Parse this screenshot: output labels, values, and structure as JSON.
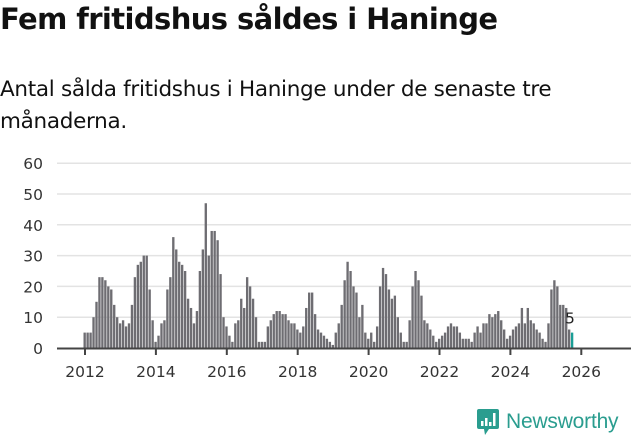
{
  "header": {
    "title": "Fem fritidshus såldes i Haninge",
    "subtitle": "Antal sålda fritidshus i Haninge under de senaste tre månaderna."
  },
  "branding": {
    "logo_text": "Newsworthy",
    "logo_icon": "bar-chart-speech-bubble-icon",
    "color": "#2a9d8f"
  },
  "colors": {
    "bar": "#6e6d72",
    "highlight": "#1a9e96",
    "gridline": "#e3e3e3",
    "axis": "#444444"
  },
  "chart_data": {
    "type": "bar",
    "title": "Fem fritidshus såldes i Haninge",
    "subtitle": "Antal sålda fritidshus i Haninge under de senaste tre månaderna.",
    "xlabel": "",
    "ylabel": "",
    "ylim": [
      0,
      60
    ],
    "yticks": [
      0,
      10,
      20,
      30,
      40,
      50,
      60
    ],
    "xticks": [
      "2012",
      "2014",
      "2016",
      "2018",
      "2020",
      "2022",
      "2024",
      "2026"
    ],
    "grid": true,
    "legend": null,
    "start": "2012-01",
    "frequency": "monthly",
    "annotation": {
      "label": "5",
      "index": "last"
    },
    "series": [
      {
        "name": "Antal sålda fritidshus",
        "values": [
          5,
          5,
          5,
          10,
          15,
          23,
          23,
          22,
          20,
          19,
          14,
          10,
          8,
          9,
          7,
          8,
          14,
          23,
          27,
          28,
          30,
          30,
          19,
          9,
          2,
          4,
          8,
          9,
          19,
          23,
          36,
          32,
          28,
          27,
          25,
          16,
          13,
          8,
          12,
          25,
          32,
          47,
          30,
          38,
          38,
          35,
          24,
          10,
          7,
          4,
          2,
          8,
          9,
          16,
          13,
          23,
          20,
          16,
          10,
          2,
          2,
          2,
          7,
          9,
          11,
          12,
          12,
          11,
          11,
          9,
          8,
          8,
          6,
          5,
          7,
          13,
          18,
          18,
          11,
          6,
          5,
          4,
          3,
          2,
          1,
          5,
          8,
          14,
          22,
          28,
          25,
          20,
          18,
          10,
          14,
          5,
          3,
          5,
          2,
          7,
          20,
          26,
          24,
          19,
          16,
          17,
          10,
          5,
          2,
          2,
          9,
          20,
          25,
          22,
          17,
          9,
          8,
          6,
          4,
          2,
          3,
          4,
          5,
          7,
          8,
          7,
          7,
          5,
          3,
          3,
          3,
          2,
          5,
          7,
          5,
          8,
          8,
          11,
          10,
          11,
          12,
          9,
          6,
          3,
          4,
          6,
          7,
          8,
          13,
          8,
          13,
          9,
          8,
          6,
          5,
          3,
          2,
          8,
          19,
          22,
          20,
          14,
          14,
          13,
          6,
          5
        ]
      }
    ]
  }
}
